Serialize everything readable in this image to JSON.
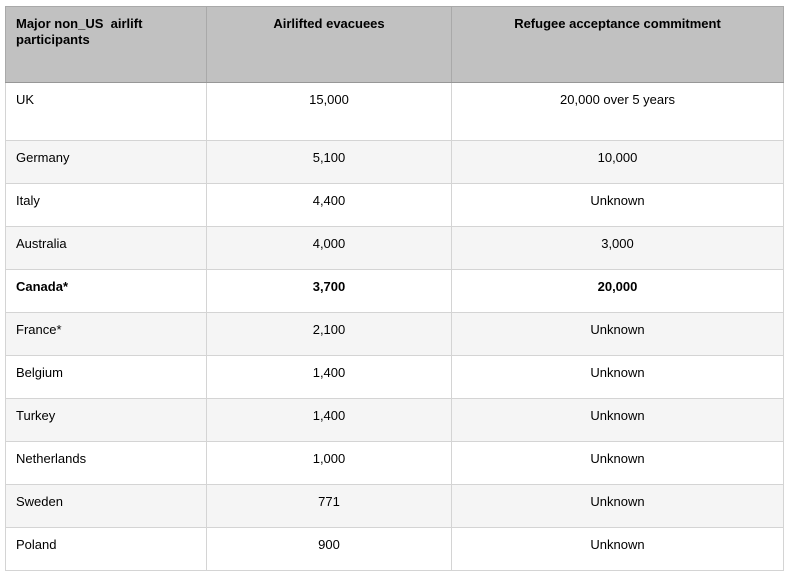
{
  "table": {
    "columns": [
      {
        "label": "Major non_US  airlift participants",
        "align": "left"
      },
      {
        "label": "Airlifted evacuees",
        "align": "center"
      },
      {
        "label": "Refugee acceptance commitment",
        "align": "center"
      }
    ],
    "rows": [
      {
        "participant": "UK",
        "evacuees": "15,000",
        "commitment": "20,000 over 5 years",
        "bold": false
      },
      {
        "participant": "Germany",
        "evacuees": "5,100",
        "commitment": "10,000",
        "bold": false
      },
      {
        "participant": "Italy",
        "evacuees": "4,400",
        "commitment": "Unknown",
        "bold": false
      },
      {
        "participant": "Australia",
        "evacuees": "4,000",
        "commitment": "3,000",
        "bold": false
      },
      {
        "participant": "Canada*",
        "evacuees": "3,700",
        "commitment": "20,000",
        "bold": true
      },
      {
        "participant": "France*",
        "evacuees": "2,100",
        "commitment": "Unknown",
        "bold": false
      },
      {
        "participant": "Belgium",
        "evacuees": "1,400",
        "commitment": "Unknown",
        "bold": false
      },
      {
        "participant": "Turkey",
        "evacuees": "1,400",
        "commitment": "Unknown",
        "bold": false
      },
      {
        "participant": "Netherlands",
        "evacuees": "1,000",
        "commitment": "Unknown",
        "bold": false
      },
      {
        "participant": "Sweden",
        "evacuees": "771",
        "commitment": "Unknown",
        "bold": false
      },
      {
        "participant": "Poland",
        "evacuees": "900",
        "commitment": "Unknown",
        "bold": false
      }
    ]
  },
  "colors": {
    "header_bg": "#c1c1c1",
    "row_bg": "#ffffff",
    "row_alt_bg": "#f5f5f5",
    "border": "#d4d4d4",
    "header_border": "#a9a9a9",
    "text": "#000000"
  },
  "chart_data": {
    "type": "table",
    "title": "",
    "columns": [
      "Major non_US  airlift participants",
      "Airlifted evacuees",
      "Refugee acceptance commitment"
    ],
    "rows": [
      [
        "UK",
        "15,000",
        "20,000 over 5 years"
      ],
      [
        "Germany",
        "5,100",
        "10,000"
      ],
      [
        "Italy",
        "4,400",
        "Unknown"
      ],
      [
        "Australia",
        "4,000",
        "3,000"
      ],
      [
        "Canada*",
        "3,700",
        "20,000"
      ],
      [
        "France*",
        "2,100",
        "Unknown"
      ],
      [
        "Belgium",
        "1,400",
        "Unknown"
      ],
      [
        "Turkey",
        "1,400",
        "Unknown"
      ],
      [
        "Netherlands",
        "1,000",
        "Unknown"
      ],
      [
        "Sweden",
        "771",
        "Unknown"
      ],
      [
        "Poland",
        "900",
        "Unknown"
      ]
    ],
    "layout_hints": {
      "header_row": true,
      "alternating_row_shading": true,
      "bold_rows": [
        "Canada*"
      ],
      "column_alignments": [
        "left",
        "center",
        "center"
      ]
    }
  }
}
